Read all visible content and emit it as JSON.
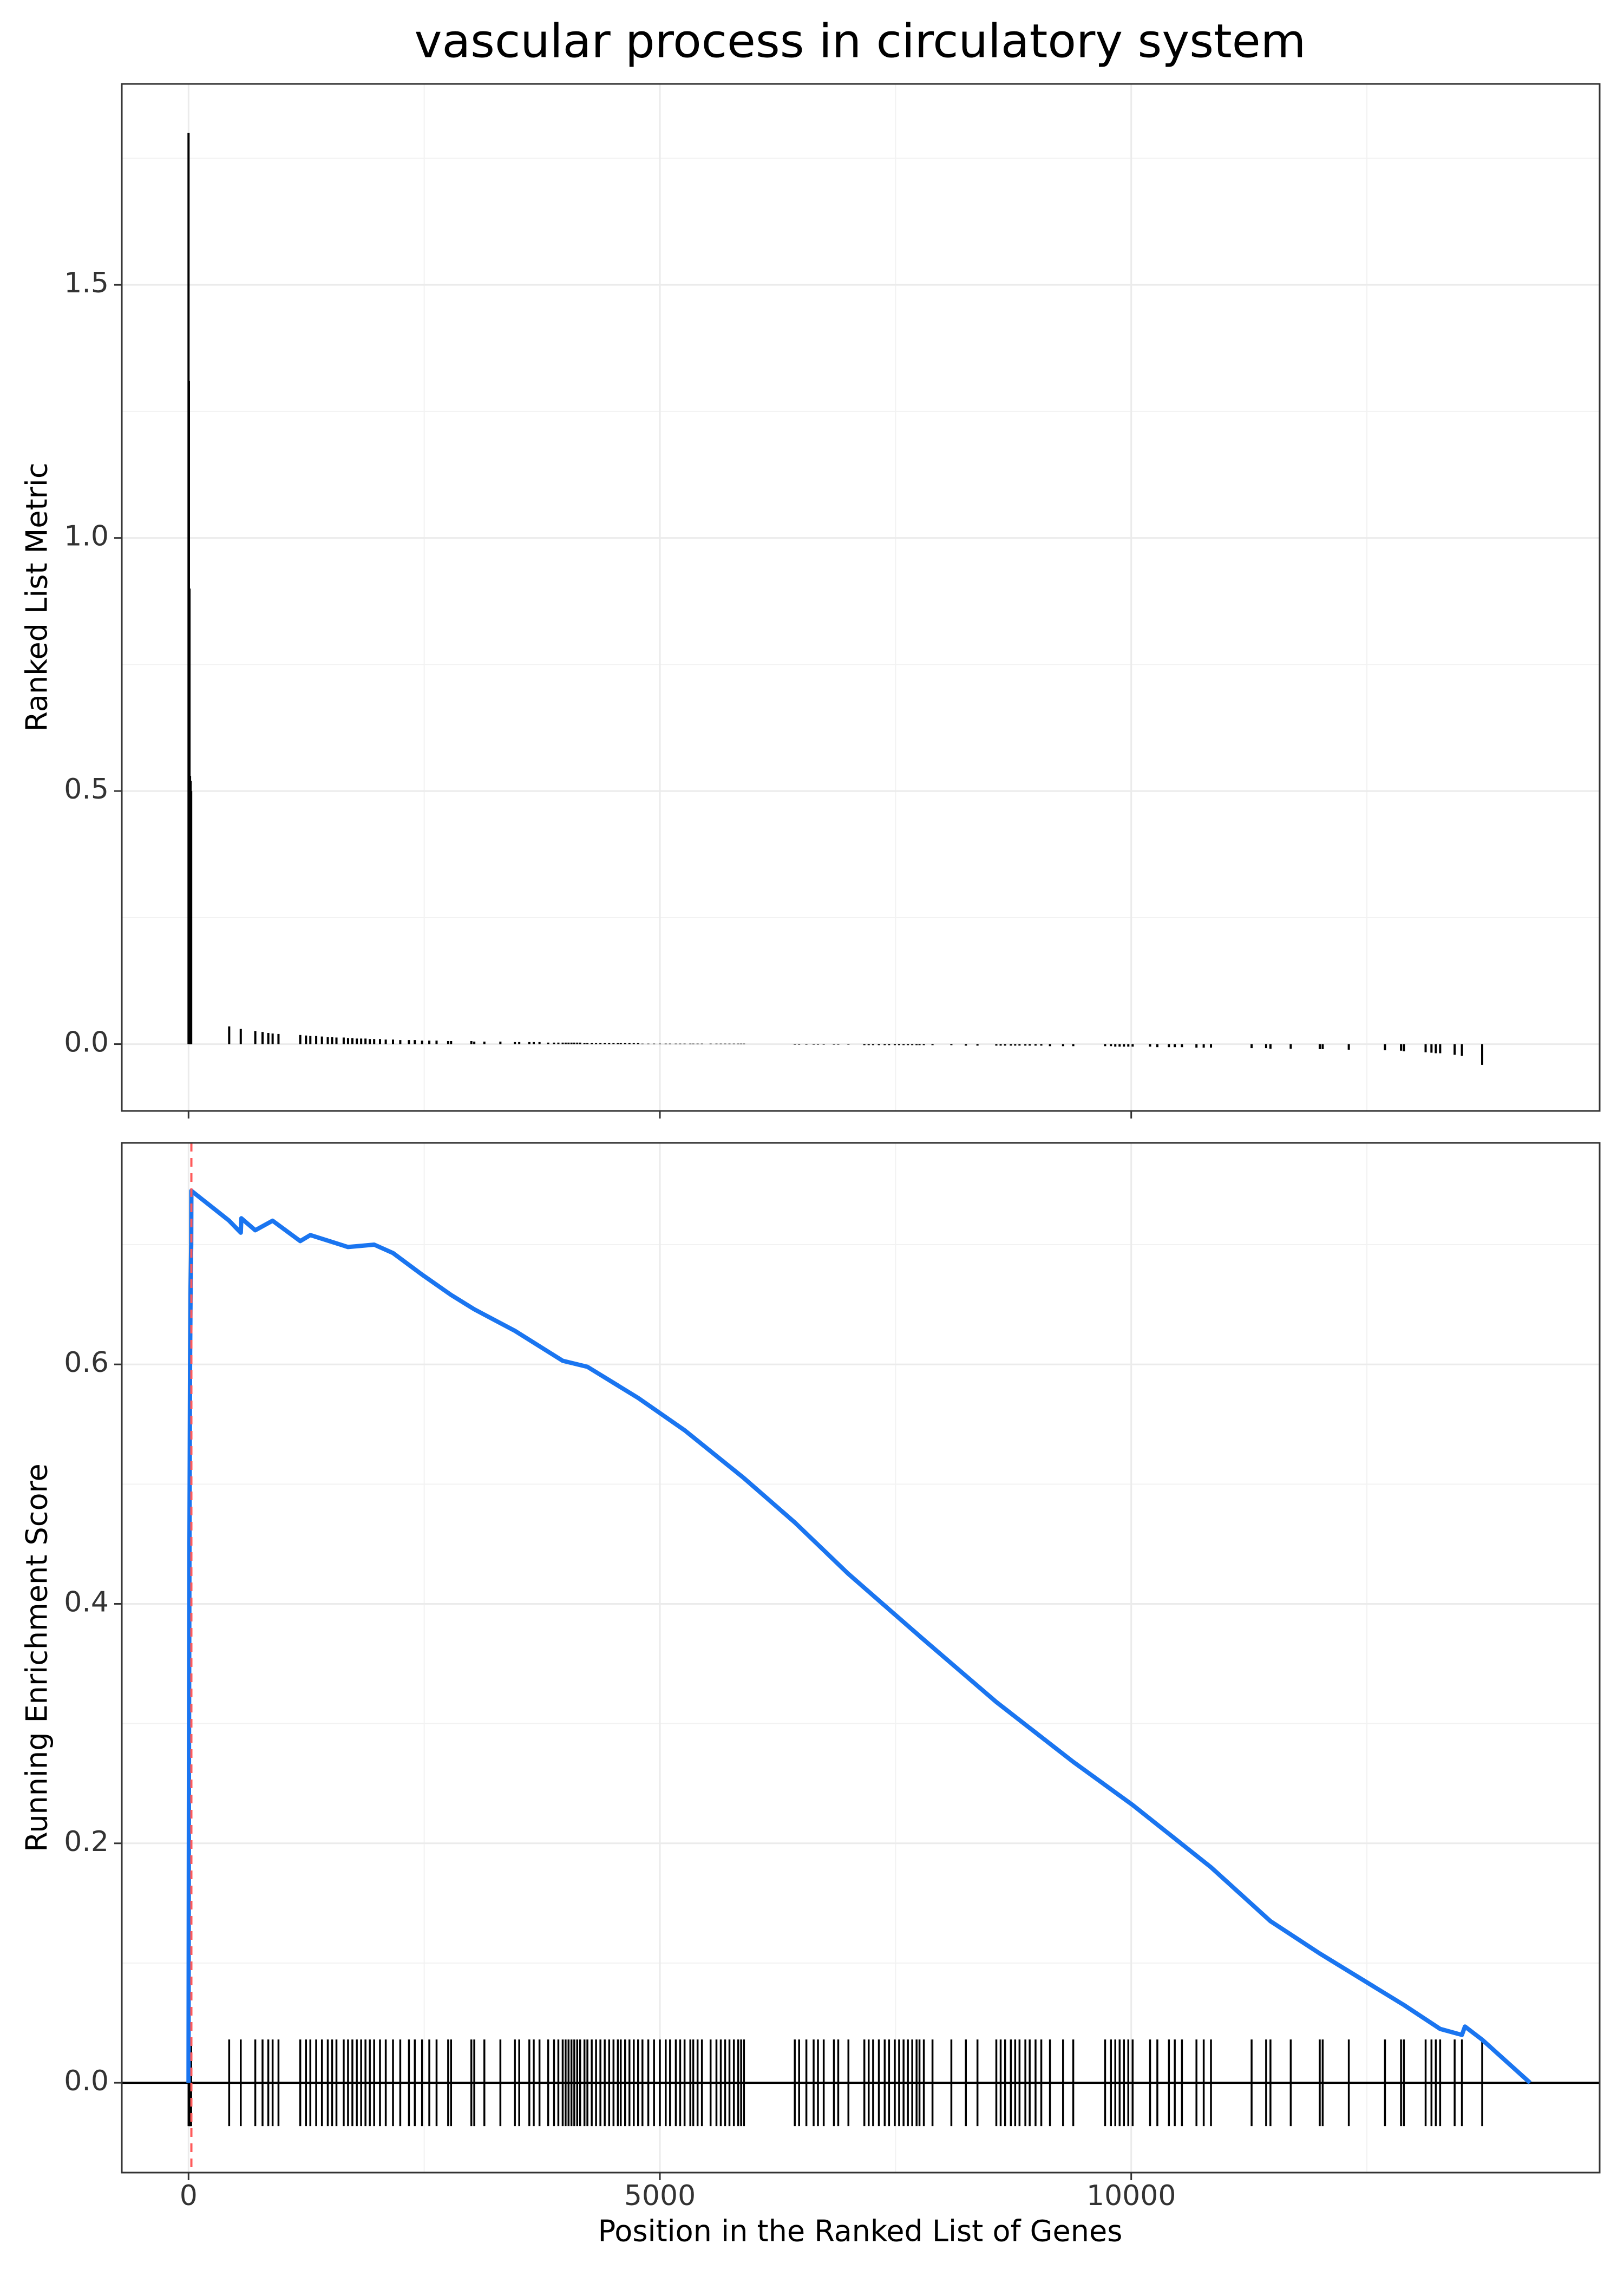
{
  "chart_data": [
    {
      "type": "bar",
      "title": "vascular process in circulatory system",
      "ylabel": "Ranked List Metric",
      "color": "#000000",
      "grid": true,
      "xlim": [
        -708,
        14969
      ],
      "ylim": [
        -0.132,
        1.897
      ],
      "xticks": [
        0,
        5000,
        10000
      ],
      "yticks": [
        {
          "value": 0,
          "label": "0.0"
        },
        0.5,
        {
          "value": 1,
          "label": "1.0"
        },
        1.5
      ],
      "x": [
        0,
        4,
        10,
        16,
        22,
        28,
        431,
        554,
        708,
        785,
        846,
        892,
        954,
        1185,
        1246,
        1292,
        1354,
        1415,
        1477,
        1523,
        1569,
        1646,
        1692,
        1738,
        1785,
        1831,
        1877,
        1923,
        1969,
        2031,
        2092,
        2169,
        2246,
        2338,
        2400,
        2477,
        2554,
        2631,
        2754,
        2785,
        3000,
        3031,
        3138,
        3308,
        3462,
        3508,
        3615,
        3662,
        3723,
        3815,
        3877,
        3923,
        3969,
        4000,
        4031,
        4062,
        4092,
        4123,
        4154,
        4200,
        4231,
        4277,
        4323,
        4369,
        4415,
        4462,
        4508,
        4554,
        4585,
        4631,
        4677,
        4723,
        4769,
        4815,
        4877,
        4938,
        5000,
        5062,
        5108,
        5169,
        5215,
        5262,
        5323,
        5354,
        5400,
        5446,
        5538,
        5600,
        5646,
        5692,
        5738,
        5785,
        5831,
        5862,
        5892,
        6431,
        6477,
        6554,
        6631,
        6677,
        6738,
        6846,
        6892,
        7000,
        7169,
        7215,
        7262,
        7323,
        7385,
        7431,
        7492,
        7538,
        7585,
        7631,
        7677,
        7723,
        7754,
        7800,
        7892,
        8092,
        8246,
        8369,
        8569,
        8615,
        8662,
        8723,
        8769,
        8815,
        8877,
        8923,
        8985,
        9046,
        9138,
        9277,
        9385,
        9723,
        9785,
        9831,
        9877,
        9923,
        9969,
        10015,
        10200,
        10277,
        10400,
        10462,
        10538,
        10692,
        10769,
        10846,
        11277,
        11431,
        11477,
        11692,
        12000,
        12031,
        12308,
        12692,
        12862,
        12892,
        13123,
        13185,
        13231,
        13277,
        13431,
        13508,
        13723
      ],
      "values": [
        1.8,
        1.31,
        0.9,
        0.53,
        0.52,
        0.5,
        0.035,
        0.03,
        0.026,
        0.024,
        0.022,
        0.021,
        0.02,
        0.018,
        0.017,
        0.016,
        0.016,
        0.015,
        0.014,
        0.014,
        0.013,
        0.013,
        0.012,
        0.012,
        0.011,
        0.011,
        0.011,
        0.01,
        0.01,
        0.01,
        0.009,
        0.009,
        0.008,
        0.008,
        0.008,
        0.007,
        0.007,
        0.007,
        0.006,
        0.006,
        0.006,
        0.005,
        0.005,
        0.005,
        0.004,
        0.004,
        0.004,
        0.004,
        0.004,
        0.003,
        0.003,
        0.003,
        0.003,
        0.003,
        0.003,
        0.003,
        0.003,
        0.003,
        0.003,
        0.002,
        0.002,
        0.002,
        0.002,
        0.002,
        0.002,
        0.002,
        0.002,
        0.002,
        0.002,
        0.002,
        0.002,
        0.002,
        0.002,
        0.001,
        0.001,
        0.001,
        0.001,
        0.001,
        0.001,
        0.001,
        0.001,
        0.001,
        0.001,
        0.001,
        0.001,
        0.001,
        0.001,
        0.001,
        0.001,
        0.001,
        0.001,
        0.001,
        0.001,
        0.001,
        0.001,
        -0.001,
        -0.001,
        -0.001,
        -0.001,
        -0.001,
        -0.001,
        -0.001,
        -0.001,
        -0.001,
        -0.002,
        -0.002,
        -0.002,
        -0.002,
        -0.002,
        -0.002,
        -0.002,
        -0.002,
        -0.002,
        -0.002,
        -0.002,
        -0.002,
        -0.002,
        -0.002,
        -0.002,
        -0.002,
        -0.003,
        -0.003,
        -0.003,
        -0.003,
        -0.003,
        -0.003,
        -0.003,
        -0.003,
        -0.003,
        -0.003,
        -0.003,
        -0.003,
        -0.004,
        -0.004,
        -0.004,
        -0.004,
        -0.004,
        -0.005,
        -0.005,
        -0.005,
        -0.005,
        -0.005,
        -0.005,
        -0.006,
        -0.006,
        -0.006,
        -0.006,
        -0.007,
        -0.007,
        -0.007,
        -0.008,
        -0.008,
        -0.009,
        -0.009,
        -0.01,
        -0.01,
        -0.011,
        -0.012,
        -0.013,
        -0.014,
        -0.016,
        -0.017,
        -0.018,
        -0.018,
        -0.021,
        -0.023,
        -0.041
      ]
    },
    {
      "type": "line",
      "xlabel": "Position in the Ranked List of Genes",
      "ylabel": "Running Enrichment Score",
      "color": "#1a75f0",
      "grid": true,
      "rug": true,
      "vline_x": 30,
      "vline_color": "#ff5a5a",
      "xlim": [
        -708,
        14969
      ],
      "ylim": [
        -0.075,
        0.785
      ],
      "xticks": [
        0,
        5000,
        10000
      ],
      "yticks": [
        {
          "value": 0,
          "label": "0.0"
        },
        0.2,
        0.4,
        0.6
      ],
      "x": [
        0,
        4,
        10,
        16,
        22,
        28,
        30,
        431,
        554,
        560,
        708,
        892,
        1185,
        1292,
        1692,
        1969,
        2169,
        2477,
        2785,
        3031,
        3462,
        3969,
        4231,
        4769,
        5262,
        5892,
        6431,
        7000,
        7800,
        8569,
        9385,
        10015,
        10846,
        11477,
        12000,
        12892,
        13277,
        13508,
        13540,
        13723,
        14231
      ],
      "values": [
        0,
        0.25,
        0.45,
        0.6,
        0.665,
        0.7,
        0.745,
        0.72,
        0.71,
        0.722,
        0.712,
        0.72,
        0.703,
        0.708,
        0.698,
        0.7,
        0.693,
        0.675,
        0.658,
        0.646,
        0.628,
        0.603,
        0.598,
        0.572,
        0.545,
        0.505,
        0.468,
        0.425,
        0.37,
        0.318,
        0.268,
        0.232,
        0.18,
        0.135,
        0.108,
        0.065,
        0.045,
        0.04,
        0.047,
        0.036,
        0
      ]
    }
  ]
}
